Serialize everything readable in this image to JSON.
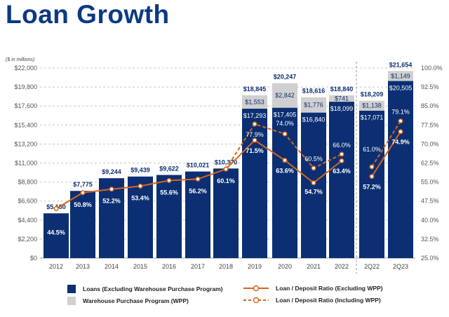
{
  "title": "Loan Growth",
  "unit_note": "($ in millions)",
  "chart_data": {
    "type": "bar",
    "stacked": true,
    "categories": [
      "2012",
      "2013",
      "2014",
      "2015",
      "2016",
      "2017",
      "2018",
      "2019",
      "2020",
      "2021",
      "2022",
      "2Q22",
      "2Q23"
    ],
    "series": [
      {
        "name": "Loans (Excluding Warehouse Purchase Program)",
        "type": "bar",
        "axis": "left",
        "color": "#0b2f72",
        "values": [
          5180,
          7775,
          9244,
          9439,
          9622,
          10021,
          10370,
          17293,
          17405,
          16840,
          18099,
          17071,
          20505
        ]
      },
      {
        "name": "Warehouse Purchase Program (WPP)",
        "type": "bar",
        "axis": "left",
        "color": "#d0d0d0",
        "values": [
          null,
          null,
          null,
          null,
          null,
          null,
          null,
          1553,
          2842,
          1776,
          741,
          1138,
          1149
        ]
      },
      {
        "name": "Loan / Deposit Ratio (Excluding WPP)",
        "type": "line",
        "axis": "right",
        "color": "#d4651d",
        "dashed": false,
        "values": [
          44.5,
          50.8,
          52.2,
          53.4,
          55.6,
          56.2,
          60.1,
          71.5,
          63.6,
          54.7,
          63.4,
          57.2,
          74.9
        ]
      },
      {
        "name": "Loan / Deposit Ratio (Including WPP)",
        "type": "line",
        "axis": "right",
        "color": "#d4651d",
        "dashed": true,
        "values": [
          null,
          null,
          null,
          null,
          null,
          null,
          60.1,
          77.9,
          74.0,
          60.5,
          66.0,
          61.0,
          79.1
        ]
      }
    ],
    "totals": [
      5180,
      7775,
      9244,
      9439,
      9622,
      10021,
      10370,
      18845,
      20247,
      18616,
      18840,
      18209,
      21654
    ],
    "total_labels": [
      "$5,180",
      "$7,775",
      "$9,244",
      "$9,439",
      "$9,622",
      "$10,021",
      "$10,370",
      "$18,845",
      "$20,247",
      "$18,616",
      "$18,840",
      "$18,209",
      "$21,654"
    ],
    "loan_labels": [
      "",
      "",
      "",
      "",
      "",
      "",
      "",
      "$17,293",
      "$17,405",
      "$16,840",
      "$18,099",
      "$17,071",
      "$20,505"
    ],
    "wpp_labels": [
      "",
      "",
      "",
      "",
      "",
      "",
      "",
      "$1,553",
      "$2,842",
      "$1,776",
      "$741",
      "$1,138",
      "$1,149"
    ],
    "ratio_ex_labels": [
      "44.5%",
      "50.8%",
      "52.2%",
      "53.4%",
      "55.6%",
      "56.2%",
      "60.1%",
      "71.5%",
      "63.6%",
      "54.7%",
      "63.4%",
      "57.2%",
      "74.9%"
    ],
    "ratio_in_labels": [
      "",
      "",
      "",
      "",
      "",
      "",
      "",
      "77.9%",
      "74.0%",
      "60.5%",
      "66.0%",
      "61.0%",
      "79.1%"
    ],
    "ylim": [
      0,
      22000
    ],
    "y2lim": [
      25,
      100
    ],
    "yticks": [
      "$0",
      "$2,200",
      "$4,400",
      "$6,600",
      "$8,800",
      "$11,000",
      "$13,200",
      "$15,400",
      "$17,600",
      "$19,800",
      "$22,000"
    ],
    "y2ticks": [
      "25.0%",
      "32.5%",
      "40.0%",
      "47.5%",
      "55.0%",
      "62.5%",
      "70.0%",
      "77.5%",
      "85.0%",
      "92.5%",
      "100.0%"
    ],
    "grid": true,
    "legend_position": "bottom"
  }
}
